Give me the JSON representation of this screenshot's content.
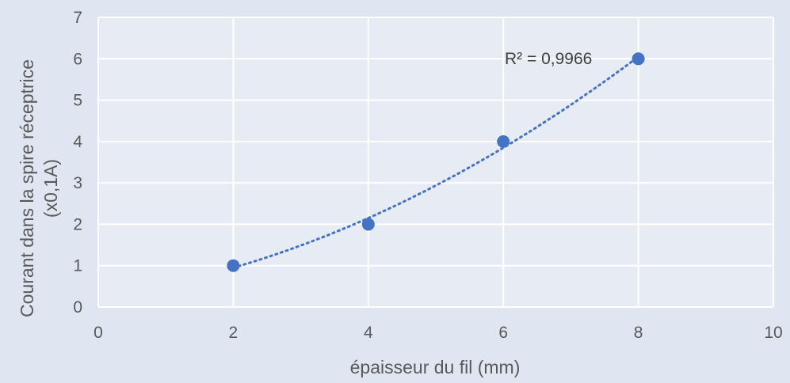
{
  "chart_data": {
    "type": "scatter",
    "x_ticks": [
      "0",
      "2",
      "4",
      "6",
      "8",
      "10"
    ],
    "y_ticks": [
      "0",
      "1",
      "2",
      "3",
      "4",
      "5",
      "6",
      "7"
    ],
    "xlim": [
      0,
      10
    ],
    "ylim": [
      0,
      7
    ],
    "xlabel": "épaisseur du fil (mm)",
    "ylabel_line1": "Courant dans la spire réceptrice",
    "ylabel_line2": "(x0,1A)",
    "grid": true,
    "series": [
      {
        "x": [
          2,
          4,
          6,
          8
        ],
        "y": [
          1,
          2,
          4,
          6
        ]
      }
    ],
    "trendline": {
      "type": "polynomial",
      "style": "dotted",
      "label": "R² = 0,9966"
    },
    "colors": {
      "marker": "#4472c4",
      "grid": "#ffffff",
      "plot_bg": "#e7ecf4",
      "text": "#595959"
    }
  }
}
